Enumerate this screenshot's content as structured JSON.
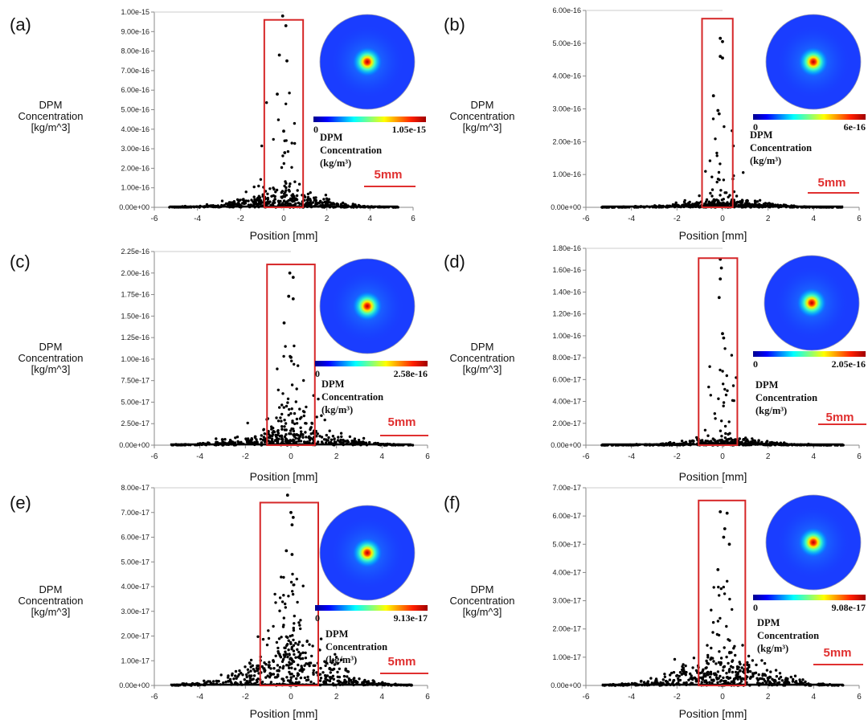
{
  "figure": {
    "panels": [
      {
        "label": "(a)",
        "ylabel": [
          "DPM",
          "Concentration",
          "[kg/m^3]"
        ],
        "xlabel": "Position [mm]",
        "yticks": [
          "0.00e+00",
          "1.00e-16",
          "2.00e-16",
          "3.00e-16",
          "4.00e-16",
          "5.00e-16",
          "6.00e-16",
          "7.00e-16",
          "8.00e-16",
          "9.00e-16",
          "1.00e-15"
        ],
        "xticks": [
          "-6",
          "-4",
          "-2",
          "0",
          "2",
          "4",
          "6"
        ],
        "colorbar_min": "0",
        "colorbar_max": "1.05e-15",
        "inset_label": [
          "DPM",
          "Concentration",
          "(kg/m³)"
        ],
        "scale_label": "5mm"
      },
      {
        "label": "(b)",
        "ylabel": [
          "DPM",
          "Concentration",
          "[kg/m^3]"
        ],
        "xlabel": "Position [mm]",
        "yticks": [
          "0.00e+00",
          "1.00e-16",
          "2.00e-16",
          "3.00e-16",
          "4.00e-16",
          "5.00e-16",
          "6.00e-16"
        ],
        "xticks": [
          "-6",
          "-4",
          "-2",
          "0",
          "2",
          "4",
          "6"
        ],
        "colorbar_min": "0",
        "colorbar_max": "6e-16",
        "inset_label": [
          "DPM",
          "Concentration",
          "(kg/m³)"
        ],
        "scale_label": "5mm"
      },
      {
        "label": "(c)",
        "ylabel": [
          "DPM",
          "Concentration",
          "[kg/m^3]"
        ],
        "xlabel": "Position [mm]",
        "yticks": [
          "0.00e+00",
          "2.50e-17",
          "5.00e-17",
          "7.50e-17",
          "1.00e-16",
          "1.25e-16",
          "1.50e-16",
          "1.75e-16",
          "2.00e-16",
          "2.25e-16"
        ],
        "xticks": [
          "-6",
          "-4",
          "-2",
          "0",
          "2",
          "4",
          "6"
        ],
        "colorbar_min": "0",
        "colorbar_max": "2.58e-16",
        "inset_label": [
          "DPM",
          "Concentration",
          "(kg/m³)"
        ],
        "scale_label": "5mm"
      },
      {
        "label": "(d)",
        "ylabel": [
          "DPM",
          "Concentration",
          "[kg/m^3]"
        ],
        "xlabel": "Position [mm]",
        "yticks": [
          "0.00e+00",
          "2.00e-17",
          "4.00e-17",
          "6.00e-17",
          "8.00e-17",
          "1.00e-16",
          "1.20e-16",
          "1.40e-16",
          "1.60e-16",
          "1.80e-16"
        ],
        "xticks": [
          "-6",
          "-4",
          "-2",
          "0",
          "2",
          "4",
          "6"
        ],
        "colorbar_min": "0",
        "colorbar_max": "2.05e-16",
        "inset_label": [
          "DPM",
          "Concentration",
          "(kg/m³)"
        ],
        "scale_label": "5mm"
      },
      {
        "label": "(e)",
        "ylabel": [
          "DPM",
          "Concentration",
          "[kg/m^3]"
        ],
        "xlabel": "Position [mm]",
        "yticks": [
          "0.00e+00",
          "1.00e-17",
          "2.00e-17",
          "3.00e-17",
          "4.00e-17",
          "5.00e-17",
          "6.00e-17",
          "7.00e-17",
          "8.00e-17"
        ],
        "xticks": [
          "-6",
          "-4",
          "-2",
          "0",
          "2",
          "4",
          "6"
        ],
        "colorbar_min": "0",
        "colorbar_max": "9.13e-17",
        "inset_label": [
          "DPM",
          "Concentration",
          "(kg/m³)"
        ],
        "scale_label": "5mm"
      },
      {
        "label": "(f)",
        "ylabel": [
          "DPM",
          "Concentration",
          "[kg/m^3]"
        ],
        "xlabel": "Position [mm]",
        "yticks": [
          "0.00e+00",
          "1.00e-17",
          "2.00e-17",
          "3.00e-17",
          "4.00e-17",
          "5.00e-17",
          "6.00e-17",
          "7.00e-17"
        ],
        "xticks": [
          "-6",
          "-4",
          "-2",
          "0",
          "2",
          "4",
          "6"
        ],
        "colorbar_min": "0",
        "colorbar_max": "9.08e-17",
        "inset_label": [
          "DPM",
          "Concentration",
          "(kg/m³)"
        ],
        "scale_label": "5mm"
      }
    ]
  },
  "colors": {
    "highlight_box": "#d62728",
    "points": "#000000",
    "scale_bar": "#e03030",
    "axis": "#888888"
  },
  "chart_data": [
    {
      "type": "scatter",
      "panel": "(a)",
      "xlim": [
        -6,
        6
      ],
      "ylim": [
        0,
        1e-15
      ],
      "highlight_xrange": [
        -0.9,
        0.9
      ],
      "highlight_ymax": 9.6e-16,
      "peak_y": 9.8e-16,
      "background_spread_y": 6e-17,
      "outlier_count": 30,
      "seed": 11,
      "points": [
        {
          "x": -0.05,
          "y": 9.8e-16
        },
        {
          "x": 0.1,
          "y": 9.3e-16
        },
        {
          "x": -0.2,
          "y": 7.8e-16
        },
        {
          "x": 0.15,
          "y": 7.5e-16
        },
        {
          "x": -0.3,
          "y": 5.8e-16
        },
        {
          "x": 0.0,
          "y": 3.9e-16
        },
        {
          "x": 0.05,
          "y": 2.8e-16
        }
      ]
    },
    {
      "type": "scatter",
      "panel": "(b)",
      "xlim": [
        -6,
        6
      ],
      "ylim": [
        0,
        6e-16
      ],
      "highlight_xrange": [
        -0.9,
        0.45
      ],
      "highlight_ymax": 5.75e-16,
      "peak_y": 5.2e-16,
      "background_spread_y": 1.5e-17,
      "outlier_count": 40,
      "seed": 22,
      "points": [
        {
          "x": -0.1,
          "y": 5.15e-16
        },
        {
          "x": 0.0,
          "y": 5.05e-16
        },
        {
          "x": -0.1,
          "y": 4.6e-16
        },
        {
          "x": 0.0,
          "y": 4.55e-16
        },
        {
          "x": -0.4,
          "y": 3.4e-16
        },
        {
          "x": -0.2,
          "y": 2.95e-16
        },
        {
          "x": -0.15,
          "y": 2.85e-16
        }
      ]
    },
    {
      "type": "scatter",
      "panel": "(c)",
      "xlim": [
        -6,
        6
      ],
      "ylim": [
        0,
        2.25e-16
      ],
      "highlight_xrange": [
        -1.05,
        1.05
      ],
      "highlight_ymax": 2.1e-16,
      "peak_y": 2e-16,
      "background_spread_y": 2e-17,
      "outlier_count": 45,
      "seed": 33,
      "points": [
        {
          "x": -0.05,
          "y": 2e-16
        },
        {
          "x": 0.1,
          "y": 1.95e-16
        },
        {
          "x": -0.1,
          "y": 1.73e-16
        },
        {
          "x": 0.1,
          "y": 1.7e-16
        },
        {
          "x": -0.3,
          "y": 1.42e-16
        },
        {
          "x": 0.0,
          "y": 1.02e-16
        }
      ]
    },
    {
      "type": "scatter",
      "panel": "(d)",
      "xlim": [
        -6,
        6
      ],
      "ylim": [
        0,
        1.8e-16
      ],
      "highlight_xrange": [
        -1.05,
        0.65
      ],
      "highlight_ymax": 1.71e-16,
      "peak_y": 1.7e-16,
      "background_spread_y": 4e-18,
      "outlier_count": 50,
      "seed": 44,
      "points": [
        {
          "x": -0.1,
          "y": 1.7e-16
        },
        {
          "x": -0.05,
          "y": 1.62e-16
        },
        {
          "x": -0.1,
          "y": 1.52e-16
        },
        {
          "x": -0.15,
          "y": 1.35e-16
        },
        {
          "x": 0.0,
          "y": 1.02e-16
        },
        {
          "x": 0.05,
          "y": 9.8e-17
        }
      ]
    },
    {
      "type": "scatter",
      "panel": "(e)",
      "xlim": [
        -6,
        6
      ],
      "ylim": [
        0,
        8e-17
      ],
      "highlight_xrange": [
        -1.35,
        1.2
      ],
      "highlight_ymax": 7.4e-17,
      "peak_y": 7.7e-17,
      "background_spread_y": 1.3e-17,
      "outlier_count": 70,
      "seed": 55,
      "points": [
        {
          "x": -0.15,
          "y": 7.7e-17
        },
        {
          "x": 0.0,
          "y": 7e-17
        },
        {
          "x": 0.1,
          "y": 6.8e-17
        },
        {
          "x": 0.05,
          "y": 6.5e-17
        },
        {
          "x": -0.2,
          "y": 5.45e-17
        },
        {
          "x": 0.05,
          "y": 5.3e-17
        }
      ]
    },
    {
      "type": "scatter",
      "panel": "(f)",
      "xlim": [
        -6,
        6
      ],
      "ylim": [
        0,
        7e-17
      ],
      "highlight_xrange": [
        -1.05,
        1.0
      ],
      "highlight_ymax": 6.55e-17,
      "peak_y": 6.2e-17,
      "background_spread_y": 8e-18,
      "outlier_count": 60,
      "seed": 66,
      "points": [
        {
          "x": -0.1,
          "y": 6.15e-17
        },
        {
          "x": 0.2,
          "y": 6.1e-17
        },
        {
          "x": 0.1,
          "y": 5.55e-17
        },
        {
          "x": 0.05,
          "y": 5.25e-17
        },
        {
          "x": 0.3,
          "y": 5e-17
        },
        {
          "x": -0.2,
          "y": 4.1e-17
        }
      ]
    }
  ]
}
